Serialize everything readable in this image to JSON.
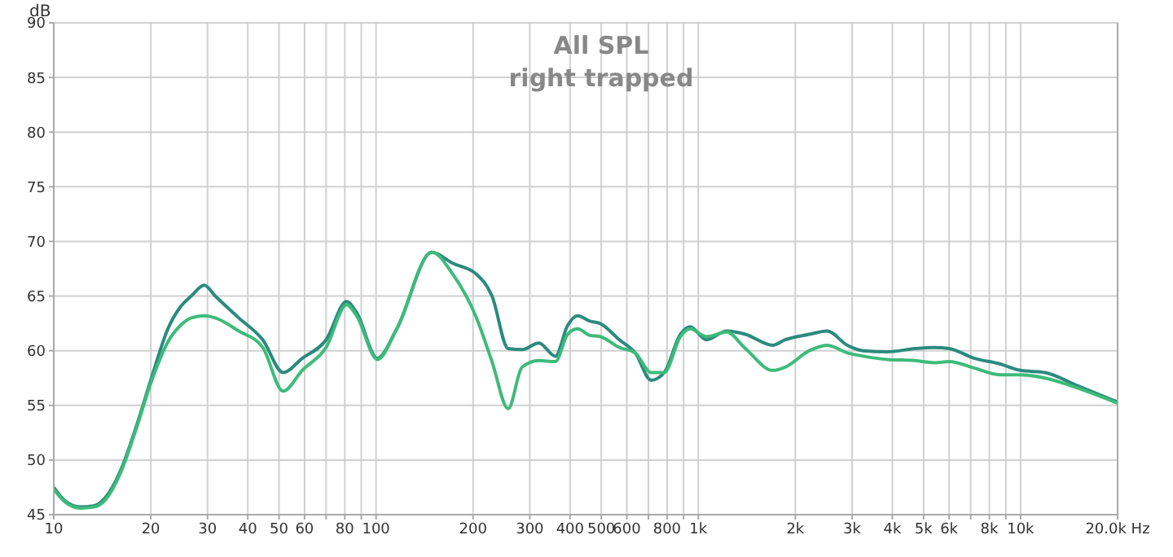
{
  "chart_data": {
    "type": "line",
    "title": "All SPL",
    "subtitle": "right trapped",
    "ylabel": "dB",
    "log": "x",
    "grid": true,
    "legend": false,
    "marker": "none",
    "line_style": "solid",
    "x": [
      10,
      10.8,
      12.1,
      13.3,
      14.4,
      16.1,
      18,
      20.1,
      22.6,
      24.7,
      26.7,
      29.3,
      31.7,
      37.5,
      44.5,
      51.5,
      59,
      70,
      81,
      87,
      101,
      116,
      149,
      173,
      205,
      229,
      257,
      284,
      320,
      360,
      393,
      422,
      461,
      495,
      569,
      637,
      714,
      784,
      880,
      943,
      1060,
      1225,
      1400,
      1700,
      1860,
      2210,
      2510,
      2900,
      3250,
      3860,
      4700,
      5400,
      6000,
      7200,
      8600,
      10000,
      11900,
      15000,
      20000
    ],
    "series": [
      {
        "color": "#2b8a7e",
        "values": [
          47.5,
          46.3,
          45.7,
          45.8,
          46.5,
          49,
          53,
          57.5,
          62,
          64,
          65,
          66,
          65,
          63,
          61,
          58,
          59.3,
          61,
          64.5,
          63.5,
          59.3,
          62,
          69,
          68,
          67,
          65,
          60.2,
          60.1,
          60.7,
          59.5,
          62.3,
          63.2,
          62.7,
          62.5,
          61,
          59.8,
          57.3,
          58,
          61.5,
          62.2,
          61,
          61.8,
          61.5,
          60.5,
          61,
          61.5,
          61.8,
          60.5,
          60,
          59.9,
          60.2,
          60.3,
          60.2,
          59.3,
          58.8,
          58.2,
          58,
          56.8,
          55.3
        ]
      },
      {
        "color": "#3dbb7a",
        "values": [
          47.3,
          46.2,
          45.6,
          45.7,
          46.3,
          48.8,
          52.8,
          57.2,
          60.8,
          62.3,
          63,
          63.2,
          63,
          61.8,
          60.3,
          56.3,
          58.2,
          60.3,
          64.2,
          63.2,
          59.2,
          62,
          69,
          67,
          63,
          59,
          54.7,
          58.5,
          59.1,
          59,
          61.5,
          62,
          61.4,
          61.3,
          60.3,
          59.8,
          58,
          58,
          61.3,
          62,
          61.3,
          61.7,
          60.2,
          58.2,
          58.5,
          60,
          60.5,
          59.8,
          59.5,
          59.2,
          59.1,
          58.9,
          59,
          58.4,
          57.8,
          57.8,
          57.5,
          56.6,
          55.2
        ]
      }
    ],
    "xlim": [
      10,
      20000
    ],
    "xticks": [
      10,
      20,
      30,
      40,
      50,
      60,
      {
        "value": 70,
        "label": null
      },
      80,
      {
        "value": 90,
        "label": null
      },
      100,
      200,
      300,
      400,
      500,
      600,
      {
        "value": 700,
        "label": null
      },
      800,
      {
        "value": 900,
        "label": null
      },
      {
        "value": 1000,
        "label": "1k"
      },
      {
        "value": 2000,
        "label": "2k"
      },
      {
        "value": 3000,
        "label": "3k"
      },
      {
        "value": 4000,
        "label": "4k"
      },
      {
        "value": 5000,
        "label": "5k"
      },
      {
        "value": 6000,
        "label": "6k"
      },
      {
        "value": 7000,
        "label": null
      },
      {
        "value": 8000,
        "label": "8k"
      },
      {
        "value": 9000,
        "label": null
      },
      {
        "value": 10000,
        "label": "10k"
      },
      {
        "value": 20000,
        "label": "20.0k Hz"
      }
    ],
    "ylim": [
      45,
      90
    ],
    "yticks": [
      45,
      50,
      55,
      60,
      65,
      70,
      75,
      80,
      85,
      90
    ]
  }
}
